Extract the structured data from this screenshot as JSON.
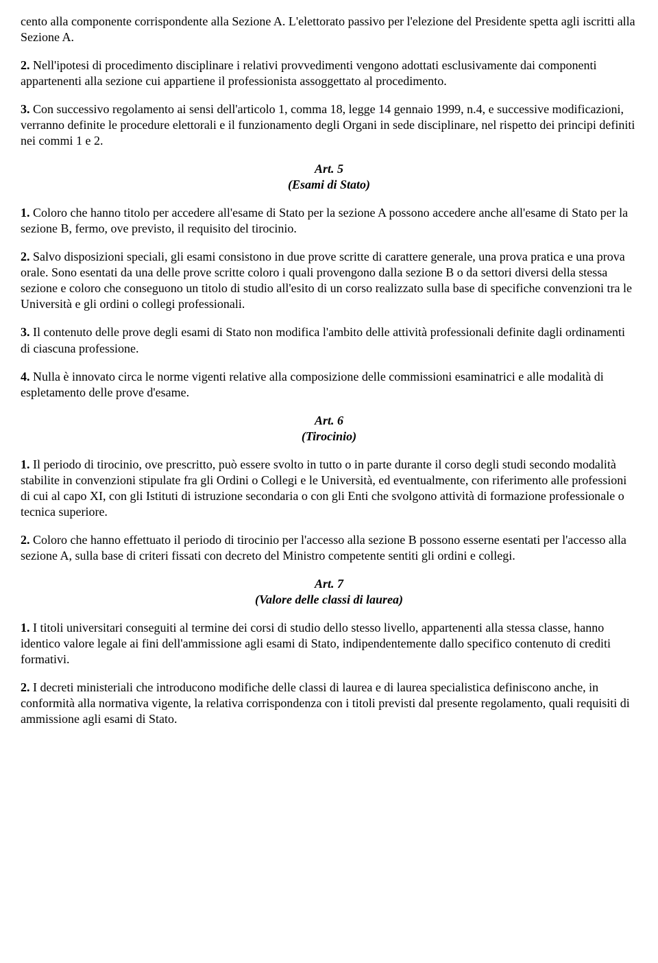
{
  "colors": {
    "background": "#ffffff",
    "text": "#000000"
  },
  "typography": {
    "font_family": "Times New Roman",
    "font_size_pt": 14,
    "line_height": 1.28
  },
  "paragraphs": {
    "p0_text": "cento alla componente corrispondente alla Sezione A. L'elettorato passivo per l'elezione del Presidente spetta agli iscritti alla Sezione A.",
    "p1_num": "2.",
    "p1_text": " Nell'ipotesi di procedimento disciplinare i relativi provvedimenti vengono adottati esclusivamente dai componenti appartenenti alla sezione cui appartiene il professionista assoggettato al procedimento.",
    "p2_num": "3.",
    "p2_text": " Con successivo regolamento ai sensi dell'articolo 1, comma 18, legge 14 gennaio 1999, n.4, e successive modificazioni, verranno definite le procedure elettorali e il funzionamento degli Organi in sede disciplinare, nel rispetto dei principi definiti nei commi 1 e 2."
  },
  "art5": {
    "heading": "Art. 5",
    "subtitle": "(Esami di Stato)",
    "p1_num": "1.",
    "p1_text": " Coloro che hanno titolo per accedere all'esame di Stato per la sezione A possono accedere anche all'esame di Stato per la sezione B, fermo, ove previsto, il requisito del tirocinio.",
    "p2_num": "2.",
    "p2_text": " Salvo disposizioni speciali, gli esami consistono in due prove scritte di carattere generale, una prova pratica e una prova orale. Sono esentati da una delle prove scritte coloro i quali provengono dalla sezione B o da settori diversi della stessa sezione e coloro che conseguono un titolo di studio all'esito di un corso realizzato sulla base di specifiche convenzioni tra le Università e gli ordini o collegi professionali.",
    "p3_num": "3.",
    "p3_text": " Il contenuto delle prove degli esami di Stato non modifica l'ambito delle attività professionali definite dagli ordinamenti di ciascuna professione.",
    "p4_num": "4.",
    "p4_text": " Nulla è innovato circa le norme vigenti relative alla composizione delle commissioni esaminatrici e alle modalità di espletamento delle prove d'esame."
  },
  "art6": {
    "heading": "Art. 6",
    "subtitle": "(Tirocinio)",
    "p1_num": "1.",
    "p1_text": " Il periodo di tirocinio, ove prescritto, può essere svolto in tutto o in parte durante il corso degli studi secondo modalità stabilite in convenzioni stipulate fra gli Ordini o Collegi e le Università, ed eventualmente, con riferimento alle professioni di cui al capo XI, con gli Istituti di istruzione secondaria o con gli Enti che svolgono attività di formazione professionale o tecnica superiore.",
    "p2_num": "2.",
    "p2_text": " Coloro che hanno effettuato il periodo di tirocinio per l'accesso alla sezione B possono esserne esentati per l'accesso alla sezione A, sulla base di criteri fissati con decreto del Ministro competente sentiti gli ordini e collegi."
  },
  "art7": {
    "heading": "Art. 7",
    "subtitle": "(Valore delle classi di laurea)",
    "p1_num": "1.",
    "p1_text": " I titoli universitari conseguiti al termine dei corsi di studio dello stesso livello, appartenenti alla stessa classe, hanno identico valore legale ai fini dell'ammissione agli esami di Stato, indipendentemente dallo specifico contenuto di crediti formativi.",
    "p2_num": "2.",
    "p2_text": " I decreti ministeriali che introducono modifiche delle classi di laurea e di laurea specialistica definiscono anche, in conformità alla normativa vigente, la relativa corrispondenza con i titoli previsti dal presente regolamento, quali requisiti di ammissione agli esami di Stato."
  }
}
